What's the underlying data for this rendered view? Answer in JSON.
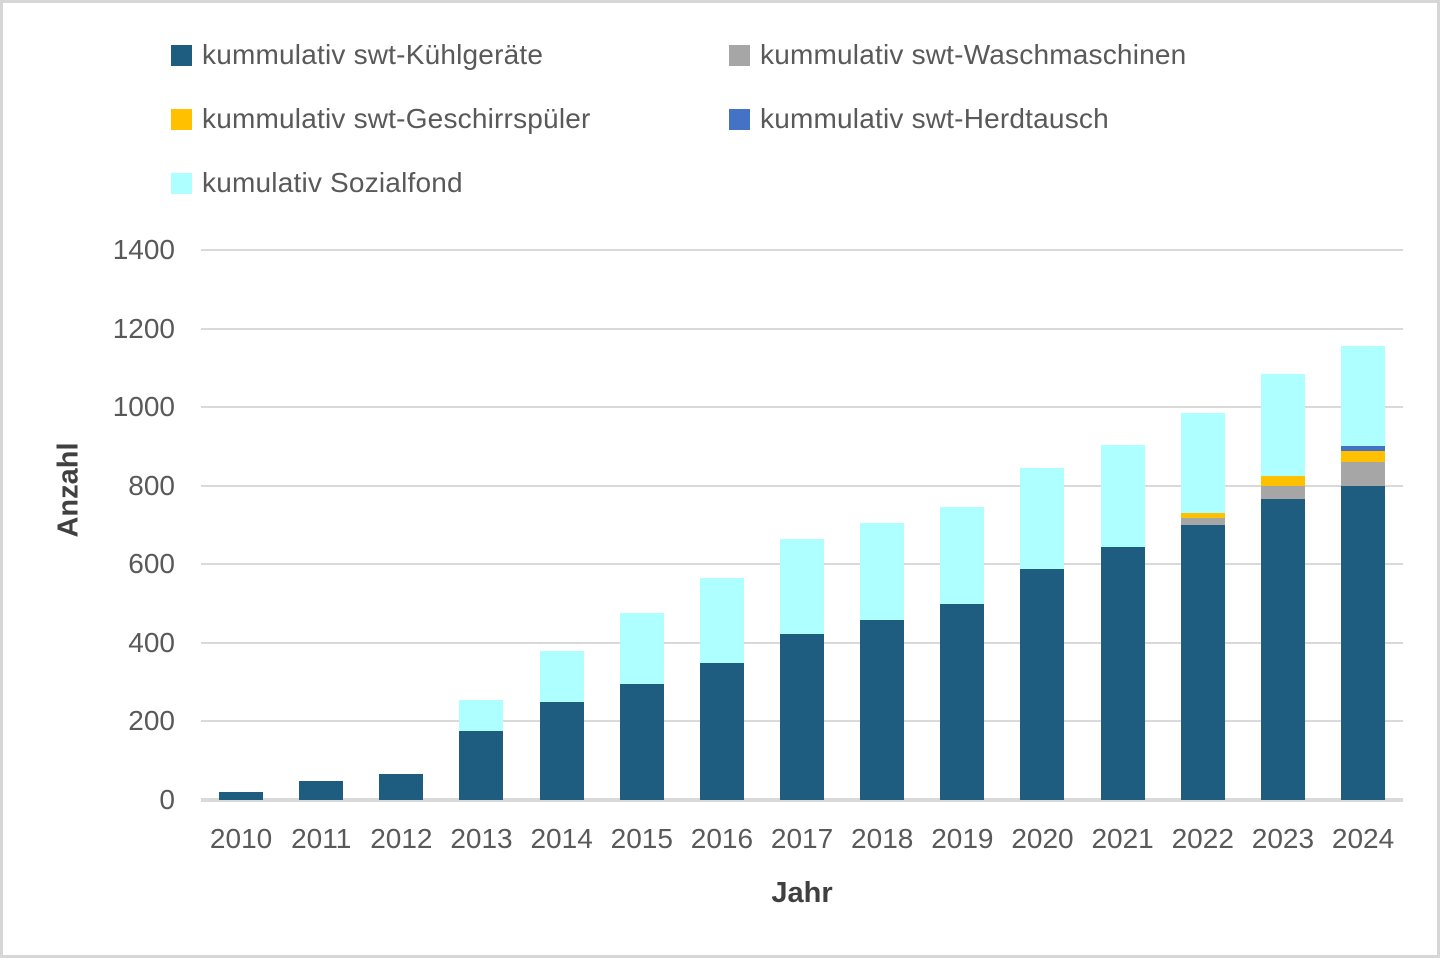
{
  "chart_data": {
    "type": "bar",
    "stacked": true,
    "title": "",
    "xlabel": "Jahr",
    "ylabel": "Anzahl",
    "ylim": [
      0,
      1400
    ],
    "yticks": [
      0,
      200,
      400,
      600,
      800,
      1000,
      1200,
      1400
    ],
    "grid": true,
    "legend_position": "top",
    "categories": [
      "2010",
      "2011",
      "2012",
      "2013",
      "2014",
      "2015",
      "2016",
      "2017",
      "2018",
      "2019",
      "2020",
      "2021",
      "2022",
      "2023",
      "2024"
    ],
    "series": [
      {
        "name": "kummulativ swt-Kühlgeräte",
        "color": "#1f5d80",
        "values": [
          20,
          48,
          65,
          175,
          250,
          295,
          350,
          422,
          457,
          500,
          588,
          645,
          700,
          767,
          800
        ]
      },
      {
        "name": "kummulativ swt-Waschmaschinen",
        "color": "#a6a6a6",
        "values": [
          0,
          0,
          0,
          0,
          0,
          0,
          0,
          0,
          0,
          0,
          0,
          0,
          17,
          32,
          60
        ]
      },
      {
        "name": "kummulativ swt-Geschirrspüler",
        "color": "#ffc000",
        "values": [
          0,
          0,
          0,
          0,
          0,
          0,
          0,
          0,
          0,
          0,
          0,
          0,
          13,
          25,
          28
        ]
      },
      {
        "name": "kummulativ swt-Herdtausch",
        "color": "#4472c4",
        "values": [
          0,
          0,
          0,
          0,
          0,
          0,
          0,
          0,
          0,
          0,
          0,
          0,
          0,
          0,
          12
        ]
      },
      {
        "name": "kumulativ Sozialfond",
        "color": "#aeffff",
        "values": [
          0,
          0,
          0,
          80,
          130,
          180,
          215,
          243,
          248,
          247,
          257,
          258,
          255,
          260,
          255
        ]
      }
    ]
  },
  "frame": {
    "border_color": "#d6d6d6",
    "gridline_color": "#d9d9d9",
    "tick_text_color": "#595959",
    "axis_title_color": "#404040"
  }
}
